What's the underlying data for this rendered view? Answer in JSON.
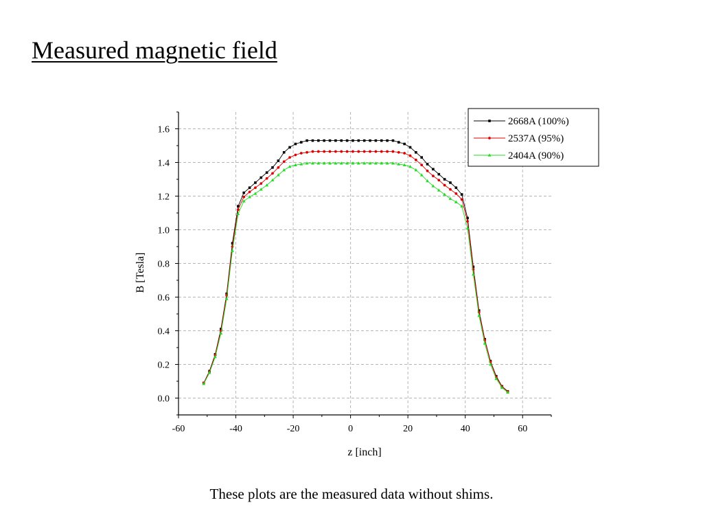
{
  "slide": {
    "title": "Measured magnetic field",
    "caption": "These plots are the measured data without shims."
  },
  "chart_data": {
    "type": "line",
    "title": "",
    "xlabel": "z [inch]",
    "ylabel": "B [Tesla]",
    "xlim": [
      -60,
      70
    ],
    "ylim": [
      -0.1,
      1.7
    ],
    "xticks": [
      -60,
      -40,
      -20,
      0,
      20,
      40,
      60
    ],
    "xtick_labels": [
      "-60",
      "-40",
      "-20",
      "0",
      "20",
      "40",
      "60"
    ],
    "yticks": [
      0.0,
      0.2,
      0.4,
      0.6,
      0.8,
      1.0,
      1.2,
      1.4,
      1.6
    ],
    "ytick_labels": [
      "0.0",
      "0.2",
      "0.4",
      "0.6",
      "0.8",
      "1.0",
      "1.2",
      "1.4",
      "1.6"
    ],
    "grid": true,
    "legend_position": "top-right",
    "x": [
      -51.2,
      -49.2,
      -47.2,
      -45.2,
      -43.2,
      -41.2,
      -39.2,
      -37.2,
      -35.2,
      -33.2,
      -31.2,
      -29.2,
      -27.2,
      -25.2,
      -23.2,
      -21.2,
      -19.2,
      -17.2,
      -15.2,
      -13.2,
      -11.2,
      -9.2,
      -7.2,
      -5.2,
      -3.2,
      -1.2,
      0.8,
      2.8,
      4.8,
      6.8,
      8.8,
      10.8,
      12.8,
      14.8,
      16.8,
      18.8,
      20.8,
      22.8,
      24.8,
      26.8,
      28.8,
      30.8,
      32.8,
      34.8,
      36.8,
      38.8,
      40.8,
      42.8,
      44.8,
      46.8,
      48.8,
      50.8,
      52.8,
      54.8
    ],
    "series": [
      {
        "name": "2668A (100%)",
        "color": "#000000",
        "marker": "square",
        "values": [
          0.09,
          0.16,
          0.26,
          0.41,
          0.62,
          0.92,
          1.14,
          1.22,
          1.25,
          1.28,
          1.31,
          1.34,
          1.37,
          1.41,
          1.46,
          1.49,
          1.51,
          1.52,
          1.53,
          1.53,
          1.53,
          1.53,
          1.53,
          1.53,
          1.53,
          1.53,
          1.53,
          1.53,
          1.53,
          1.53,
          1.53,
          1.53,
          1.53,
          1.53,
          1.52,
          1.51,
          1.49,
          1.46,
          1.43,
          1.39,
          1.36,
          1.33,
          1.3,
          1.28,
          1.25,
          1.21,
          1.07,
          0.78,
          0.52,
          0.35,
          0.22,
          0.13,
          0.07,
          0.04
        ]
      },
      {
        "name": "2537A (95%)",
        "color": "#e00000",
        "marker": "circle",
        "values": [
          0.09,
          0.155,
          0.255,
          0.4,
          0.61,
          0.9,
          1.12,
          1.195,
          1.225,
          1.25,
          1.275,
          1.305,
          1.335,
          1.37,
          1.405,
          1.43,
          1.445,
          1.455,
          1.46,
          1.465,
          1.465,
          1.465,
          1.465,
          1.465,
          1.465,
          1.465,
          1.465,
          1.465,
          1.465,
          1.465,
          1.465,
          1.465,
          1.465,
          1.465,
          1.46,
          1.455,
          1.44,
          1.415,
          1.385,
          1.35,
          1.32,
          1.295,
          1.265,
          1.24,
          1.215,
          1.18,
          1.05,
          0.765,
          0.51,
          0.345,
          0.215,
          0.125,
          0.068,
          0.038
        ]
      },
      {
        "name": "2404A (90%)",
        "color": "#22dd22",
        "marker": "triangle",
        "values": [
          0.085,
          0.15,
          0.245,
          0.385,
          0.59,
          0.875,
          1.095,
          1.17,
          1.195,
          1.215,
          1.24,
          1.265,
          1.295,
          1.325,
          1.355,
          1.375,
          1.385,
          1.39,
          1.395,
          1.395,
          1.395,
          1.395,
          1.395,
          1.395,
          1.395,
          1.395,
          1.395,
          1.395,
          1.395,
          1.395,
          1.395,
          1.395,
          1.395,
          1.395,
          1.39,
          1.385,
          1.375,
          1.355,
          1.325,
          1.29,
          1.26,
          1.235,
          1.21,
          1.185,
          1.165,
          1.14,
          1.01,
          0.735,
          0.49,
          0.325,
          0.2,
          0.115,
          0.062,
          0.034
        ]
      }
    ]
  }
}
